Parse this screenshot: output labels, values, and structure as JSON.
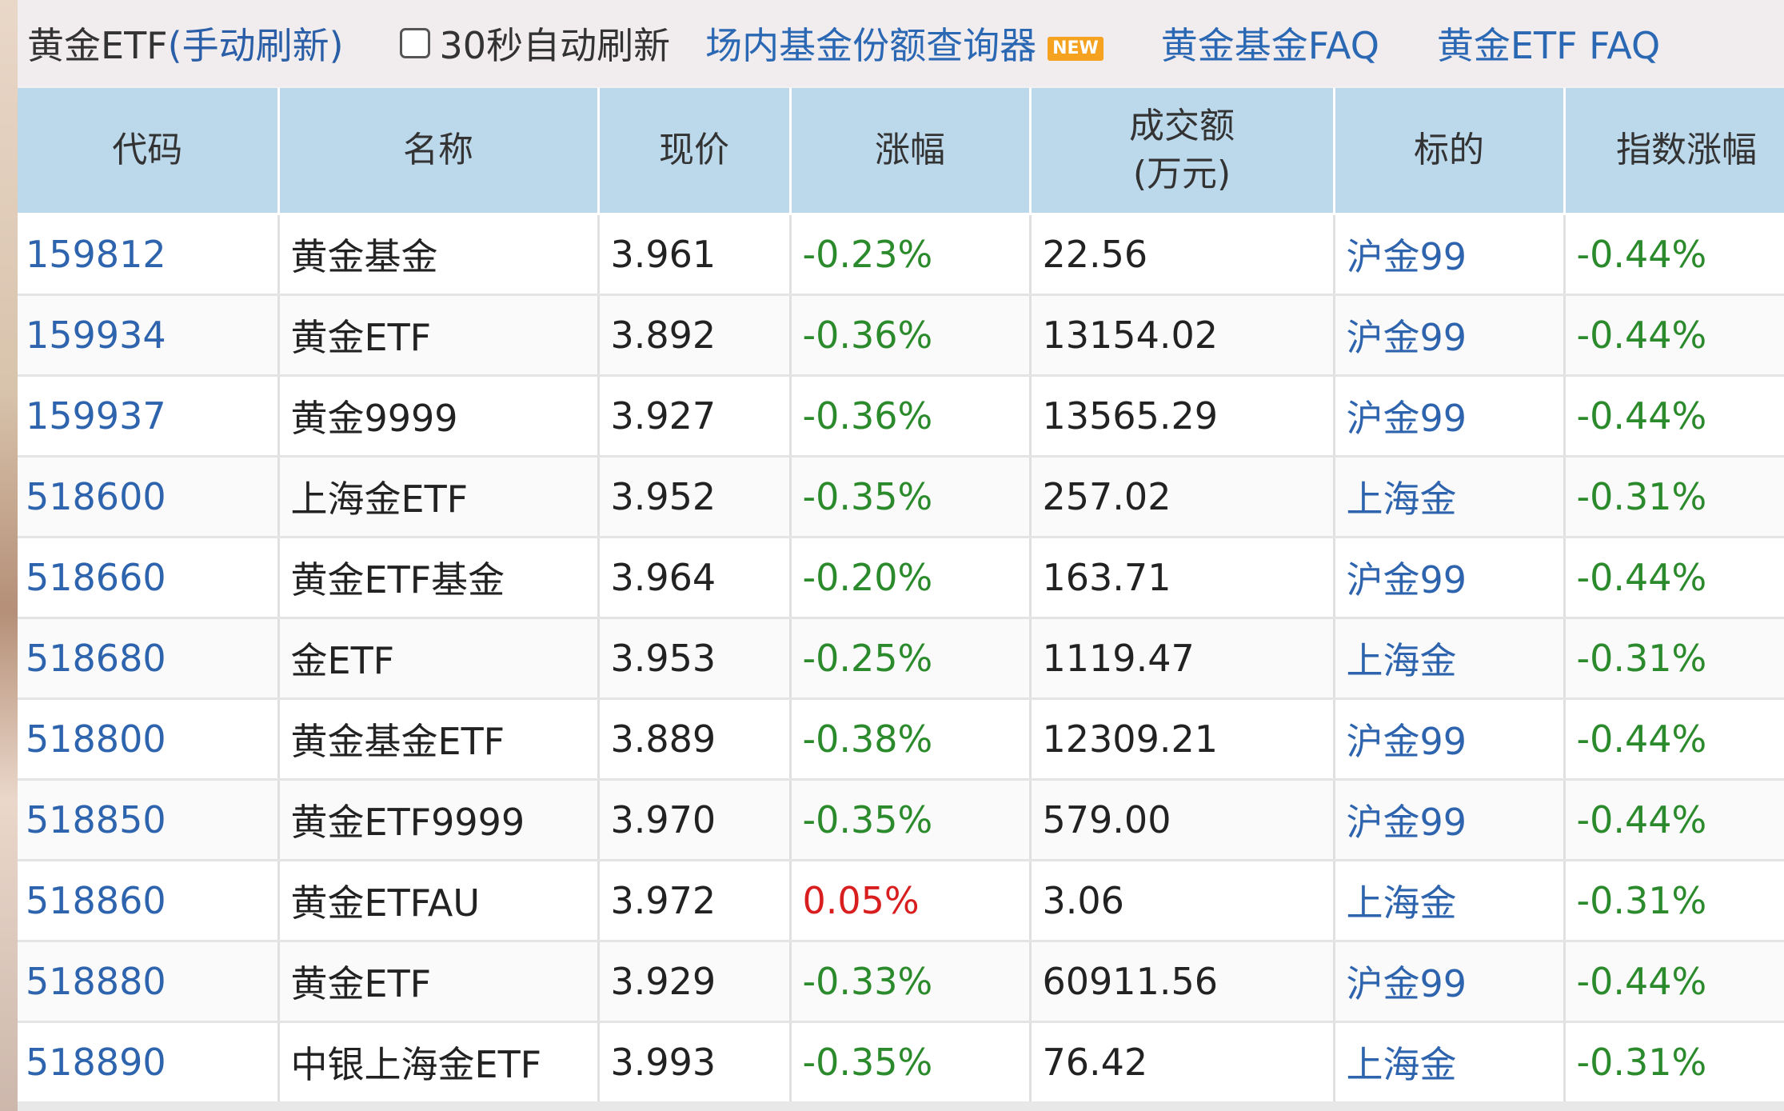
{
  "topbar": {
    "title": "黄金ETF",
    "refresh_link": "(手动刷新)",
    "auto_refresh_label": "30秒自动刷新",
    "link_query": "场内基金份额查询器",
    "new_badge": "NEW",
    "link_faq": "黄金基金FAQ",
    "link_etf_faq": "黄金ETF FAQ"
  },
  "table": {
    "headers": {
      "code": "代码",
      "name": "名称",
      "price": "现价",
      "change": "涨幅",
      "amount_line1": "成交额",
      "amount_line2": "(万元)",
      "target": "标的",
      "index_change": "指数涨幅"
    },
    "rows": [
      {
        "code": "159812",
        "name": "黄金基金",
        "price": "3.961",
        "change": "-0.23%",
        "amount": "22.56",
        "target": "沪金99",
        "index_change": "-0.44%"
      },
      {
        "code": "159934",
        "name": "黄金ETF",
        "price": "3.892",
        "change": "-0.36%",
        "amount": "13154.02",
        "target": "沪金99",
        "index_change": "-0.44%"
      },
      {
        "code": "159937",
        "name": "黄金9999",
        "price": "3.927",
        "change": "-0.36%",
        "amount": "13565.29",
        "target": "沪金99",
        "index_change": "-0.44%"
      },
      {
        "code": "518600",
        "name": "上海金ETF",
        "price": "3.952",
        "change": "-0.35%",
        "amount": "257.02",
        "target": "上海金",
        "index_change": "-0.31%"
      },
      {
        "code": "518660",
        "name": "黄金ETF基金",
        "price": "3.964",
        "change": "-0.20%",
        "amount": "163.71",
        "target": "沪金99",
        "index_change": "-0.44%"
      },
      {
        "code": "518680",
        "name": "金ETF",
        "price": "3.953",
        "change": "-0.25%",
        "amount": "1119.47",
        "target": "上海金",
        "index_change": "-0.31%"
      },
      {
        "code": "518800",
        "name": "黄金基金ETF",
        "price": "3.889",
        "change": "-0.38%",
        "amount": "12309.21",
        "target": "沪金99",
        "index_change": "-0.44%"
      },
      {
        "code": "518850",
        "name": "黄金ETF9999",
        "price": "3.970",
        "change": "-0.35%",
        "amount": "579.00",
        "target": "沪金99",
        "index_change": "-0.44%"
      },
      {
        "code": "518860",
        "name": "黄金ETFAU",
        "price": "3.972",
        "change": "0.05%",
        "amount": "3.06",
        "target": "上海金",
        "index_change": "-0.31%"
      },
      {
        "code": "518880",
        "name": "黄金ETF",
        "price": "3.929",
        "change": "-0.33%",
        "amount": "60911.56",
        "target": "沪金99",
        "index_change": "-0.44%"
      },
      {
        "code": "518890",
        "name": "中银上海金ETF",
        "price": "3.993",
        "change": "-0.35%",
        "amount": "76.42",
        "target": "上海金",
        "index_change": "-0.31%"
      }
    ]
  },
  "colors": {
    "header_bg": "#bcd9ec",
    "link_blue": "#2b68b4",
    "negative_green": "#2b8a2b",
    "positive_red": "#d81e1e"
  }
}
